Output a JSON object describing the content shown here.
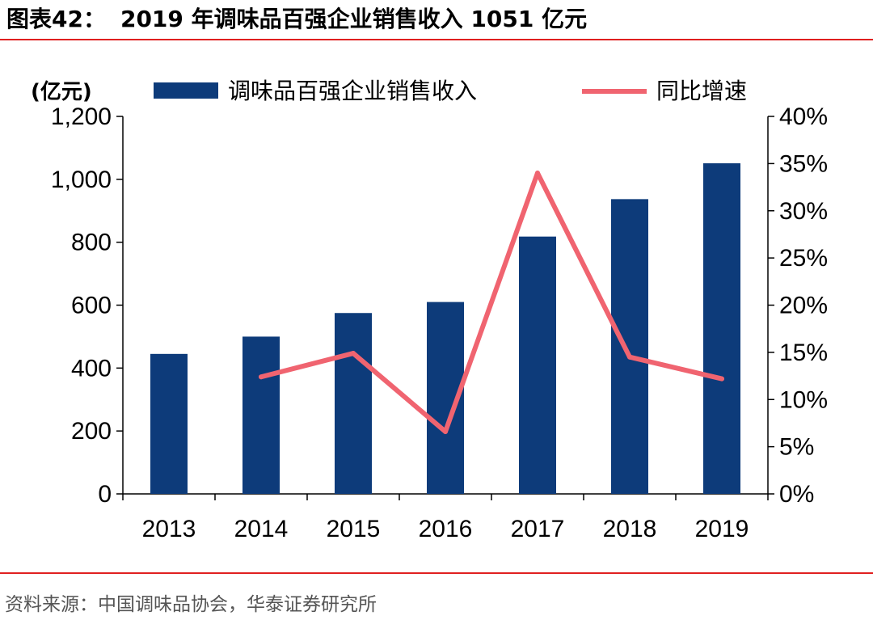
{
  "figure": {
    "number": "图表42：",
    "title": "2019 年调味品百强企业销售收入 1051 亿元",
    "source": "资料来源：中国调味品协会，华泰证券研究所"
  },
  "chart_data": {
    "type": "bar",
    "categories": [
      "2013",
      "2014",
      "2015",
      "2016",
      "2017",
      "2018",
      "2019"
    ],
    "series": [
      {
        "name": "调味品百强企业销售收入",
        "type": "bar",
        "axis": "left",
        "color": "#0d3b7a",
        "values": [
          445,
          500,
          575,
          610,
          818,
          937,
          1051
        ]
      },
      {
        "name": "同比增速",
        "type": "line",
        "axis": "right",
        "color": "#f06470",
        "values": [
          null,
          12.4,
          14.9,
          6.6,
          34.0,
          14.5,
          12.2
        ]
      }
    ],
    "y_left": {
      "label": "(亿元)",
      "range": [
        0,
        1200
      ],
      "ticks": [
        0,
        200,
        400,
        600,
        800,
        1000,
        1200
      ],
      "tick_labels": [
        "0",
        "200",
        "400",
        "600",
        "800",
        "1,000",
        "1,200"
      ]
    },
    "y_right": {
      "range": [
        0,
        40
      ],
      "ticks": [
        0,
        5,
        10,
        15,
        20,
        25,
        30,
        35,
        40
      ],
      "tick_labels": [
        "0%",
        "5%",
        "10%",
        "15%",
        "20%",
        "25%",
        "30%",
        "35%",
        "40%"
      ]
    },
    "grid": false,
    "legend": "top"
  }
}
